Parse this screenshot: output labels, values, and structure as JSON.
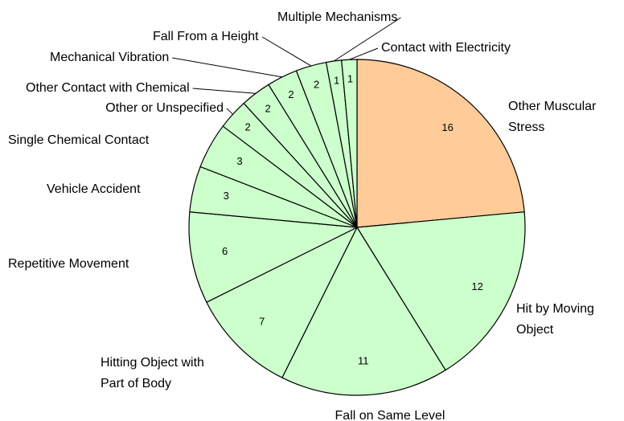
{
  "chart_data": {
    "type": "pie",
    "categories": [
      "Other Muscular Stress",
      "Hit by Moving Object",
      "Fall on Same Level",
      "Hitting Object with Part of Body",
      "Repetitive Movement",
      "Vehicle Accident",
      "Single Chemical Contact",
      "Other or Unspecified",
      "Other Contact with Chemical",
      "Mechanical Vibration",
      "Fall From a Height",
      "Multiple Mechanisms",
      "Contact with Electricity"
    ],
    "values": [
      16,
      12,
      11,
      7,
      6,
      3,
      3,
      2,
      2,
      2,
      2,
      1,
      1
    ],
    "colors": [
      "#ffcc99",
      "#ccffcc",
      "#ccffcc",
      "#ccffcc",
      "#ccffcc",
      "#ccffcc",
      "#ccffcc",
      "#ccffcc",
      "#ccffcc",
      "#ccffcc",
      "#ccffcc",
      "#ccffcc",
      "#ccffcc"
    ]
  }
}
